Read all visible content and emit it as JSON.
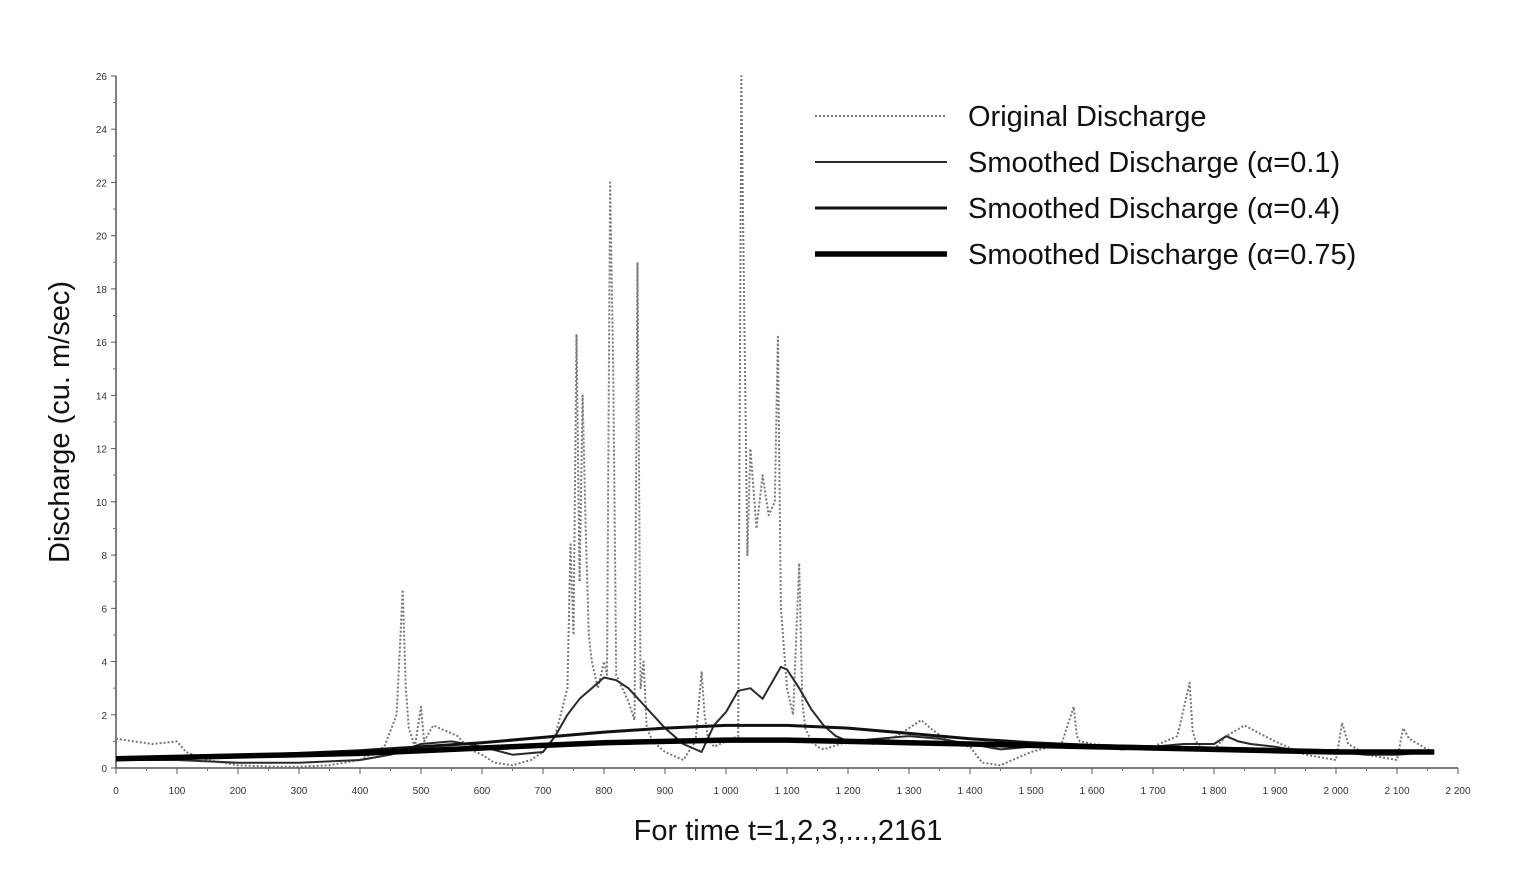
{
  "chart_data": {
    "type": "line",
    "title": "",
    "xlabel": "For time t=1,2,3,...,2161",
    "ylabel": "Discharge (cu. m/sec)",
    "xlim": [
      0,
      2200
    ],
    "ylim": [
      0,
      26
    ],
    "x_ticks": [
      "0",
      "100",
      "200",
      "300",
      "400",
      "500",
      "600",
      "700",
      "800",
      "900",
      "1 000",
      "1 100",
      "1 200",
      "1 300",
      "1 400",
      "1 500",
      "1 600",
      "1 700",
      "1 800",
      "1 900",
      "2 000",
      "2 100",
      "2 200"
    ],
    "y_ticks": [
      "0",
      "2",
      "4",
      "6",
      "8",
      "10",
      "12",
      "14",
      "16",
      "18",
      "20",
      "22",
      "24",
      "26"
    ],
    "grid": false,
    "legend_position": "top-right",
    "series": [
      {
        "name": "Original Discharge",
        "style": "dotted",
        "x": [
          0,
          30,
          60,
          100,
          115,
          150,
          200,
          260,
          300,
          350,
          400,
          440,
          460,
          470,
          475,
          480,
          490,
          500,
          505,
          520,
          540,
          560,
          580,
          600,
          620,
          650,
          680,
          700,
          720,
          740,
          745,
          750,
          755,
          760,
          765,
          770,
          775,
          780,
          790,
          800,
          805,
          810,
          815,
          820,
          830,
          840,
          850,
          855,
          860,
          865,
          870,
          880,
          900,
          930,
          950,
          960,
          965,
          970,
          980,
          1000,
          1020,
          1025,
          1030,
          1035,
          1040,
          1050,
          1060,
          1070,
          1080,
          1085,
          1090,
          1100,
          1110,
          1120,
          1125,
          1130,
          1140,
          1150,
          1160,
          1200,
          1240,
          1280,
          1300,
          1320,
          1340,
          1360,
          1380,
          1400,
          1420,
          1450,
          1500,
          1550,
          1570,
          1575,
          1580,
          1600,
          1650,
          1700,
          1740,
          1760,
          1765,
          1770,
          1780,
          1800,
          1820,
          1850,
          1900,
          1950,
          2000,
          2010,
          2020,
          2050,
          2100,
          2110,
          2120,
          2150,
          2161
        ],
        "y": [
          1.1,
          1.0,
          0.9,
          1.0,
          0.6,
          0.3,
          0.1,
          0.05,
          0.05,
          0.1,
          0.3,
          0.8,
          2.0,
          6.7,
          3.0,
          1.5,
          0.8,
          2.3,
          1.0,
          1.6,
          1.4,
          1.2,
          0.7,
          0.5,
          0.2,
          0.1,
          0.3,
          0.6,
          1.2,
          3.0,
          8.4,
          5.0,
          16.3,
          7.0,
          14.0,
          9.0,
          5.0,
          4.0,
          3.0,
          4.0,
          3.5,
          22.0,
          15.0,
          3.5,
          3.0,
          2.5,
          1.8,
          19.0,
          3.0,
          4.0,
          1.5,
          1.0,
          0.6,
          0.3,
          1.0,
          3.6,
          2.0,
          1.2,
          0.8,
          1.0,
          1.2,
          26.0,
          17.0,
          8.0,
          12.0,
          9.0,
          11.0,
          9.5,
          10.0,
          16.2,
          6.0,
          3.0,
          2.0,
          7.7,
          2.5,
          1.5,
          1.0,
          0.8,
          0.7,
          1.0,
          0.9,
          1.2,
          1.5,
          1.8,
          1.4,
          1.1,
          0.9,
          0.8,
          0.2,
          0.1,
          0.6,
          0.9,
          2.3,
          1.2,
          1.0,
          0.9,
          0.8,
          0.8,
          1.2,
          3.2,
          1.4,
          1.0,
          0.8,
          0.7,
          1.2,
          1.6,
          1.0,
          0.5,
          0.3,
          1.7,
          0.9,
          0.5,
          0.3,
          1.5,
          1.1,
          0.7,
          0.6
        ]
      },
      {
        "name": "Smoothed Discharge (α=0.1)",
        "style": "thin",
        "x": [
          0,
          100,
          200,
          300,
          400,
          450,
          500,
          550,
          600,
          650,
          700,
          720,
          740,
          760,
          780,
          800,
          820,
          840,
          860,
          880,
          900,
          930,
          960,
          980,
          1000,
          1020,
          1040,
          1060,
          1080,
          1090,
          1100,
          1120,
          1140,
          1160,
          1180,
          1200,
          1250,
          1300,
          1350,
          1400,
          1450,
          1500,
          1550,
          1600,
          1650,
          1700,
          1750,
          1800,
          1820,
          1840,
          1860,
          1900,
          1950,
          2000,
          2050,
          2100,
          2161
        ],
        "y": [
          0.3,
          0.3,
          0.2,
          0.2,
          0.3,
          0.5,
          0.9,
          1.0,
          0.8,
          0.5,
          0.6,
          1.2,
          2.0,
          2.6,
          3.0,
          3.4,
          3.3,
          3.0,
          2.5,
          2.0,
          1.5,
          0.9,
          0.6,
          1.6,
          2.1,
          2.9,
          3.0,
          2.6,
          3.4,
          3.8,
          3.7,
          3.0,
          2.2,
          1.6,
          1.2,
          1.0,
          1.1,
          1.2,
          1.1,
          0.9,
          0.7,
          0.8,
          0.9,
          0.8,
          0.7,
          0.8,
          0.9,
          0.9,
          1.2,
          1.0,
          0.9,
          0.8,
          0.6,
          0.6,
          0.5,
          0.5,
          0.6
        ]
      },
      {
        "name": "Smoothed Discharge (α=0.4)",
        "style": "medium",
        "x": [
          0,
          100,
          200,
          300,
          400,
          500,
          600,
          700,
          800,
          900,
          1000,
          1100,
          1200,
          1300,
          1400,
          1500,
          1600,
          1700,
          1800,
          1900,
          2000,
          2100,
          2161
        ],
        "y": [
          0.35,
          0.4,
          0.45,
          0.55,
          0.65,
          0.8,
          0.95,
          1.15,
          1.35,
          1.5,
          1.6,
          1.6,
          1.5,
          1.3,
          1.1,
          0.95,
          0.85,
          0.8,
          0.75,
          0.7,
          0.65,
          0.6,
          0.6
        ]
      },
      {
        "name": "Smoothed Discharge (α=0.75)",
        "style": "thick",
        "x": [
          0,
          100,
          200,
          300,
          400,
          500,
          600,
          700,
          800,
          900,
          1000,
          1100,
          1200,
          1300,
          1400,
          1500,
          1600,
          1700,
          1800,
          1900,
          2000,
          2100,
          2161
        ],
        "y": [
          0.35,
          0.4,
          0.45,
          0.5,
          0.55,
          0.65,
          0.75,
          0.85,
          0.95,
          1.0,
          1.05,
          1.05,
          1.0,
          0.95,
          0.9,
          0.85,
          0.8,
          0.75,
          0.7,
          0.65,
          0.6,
          0.6,
          0.6
        ]
      }
    ]
  }
}
